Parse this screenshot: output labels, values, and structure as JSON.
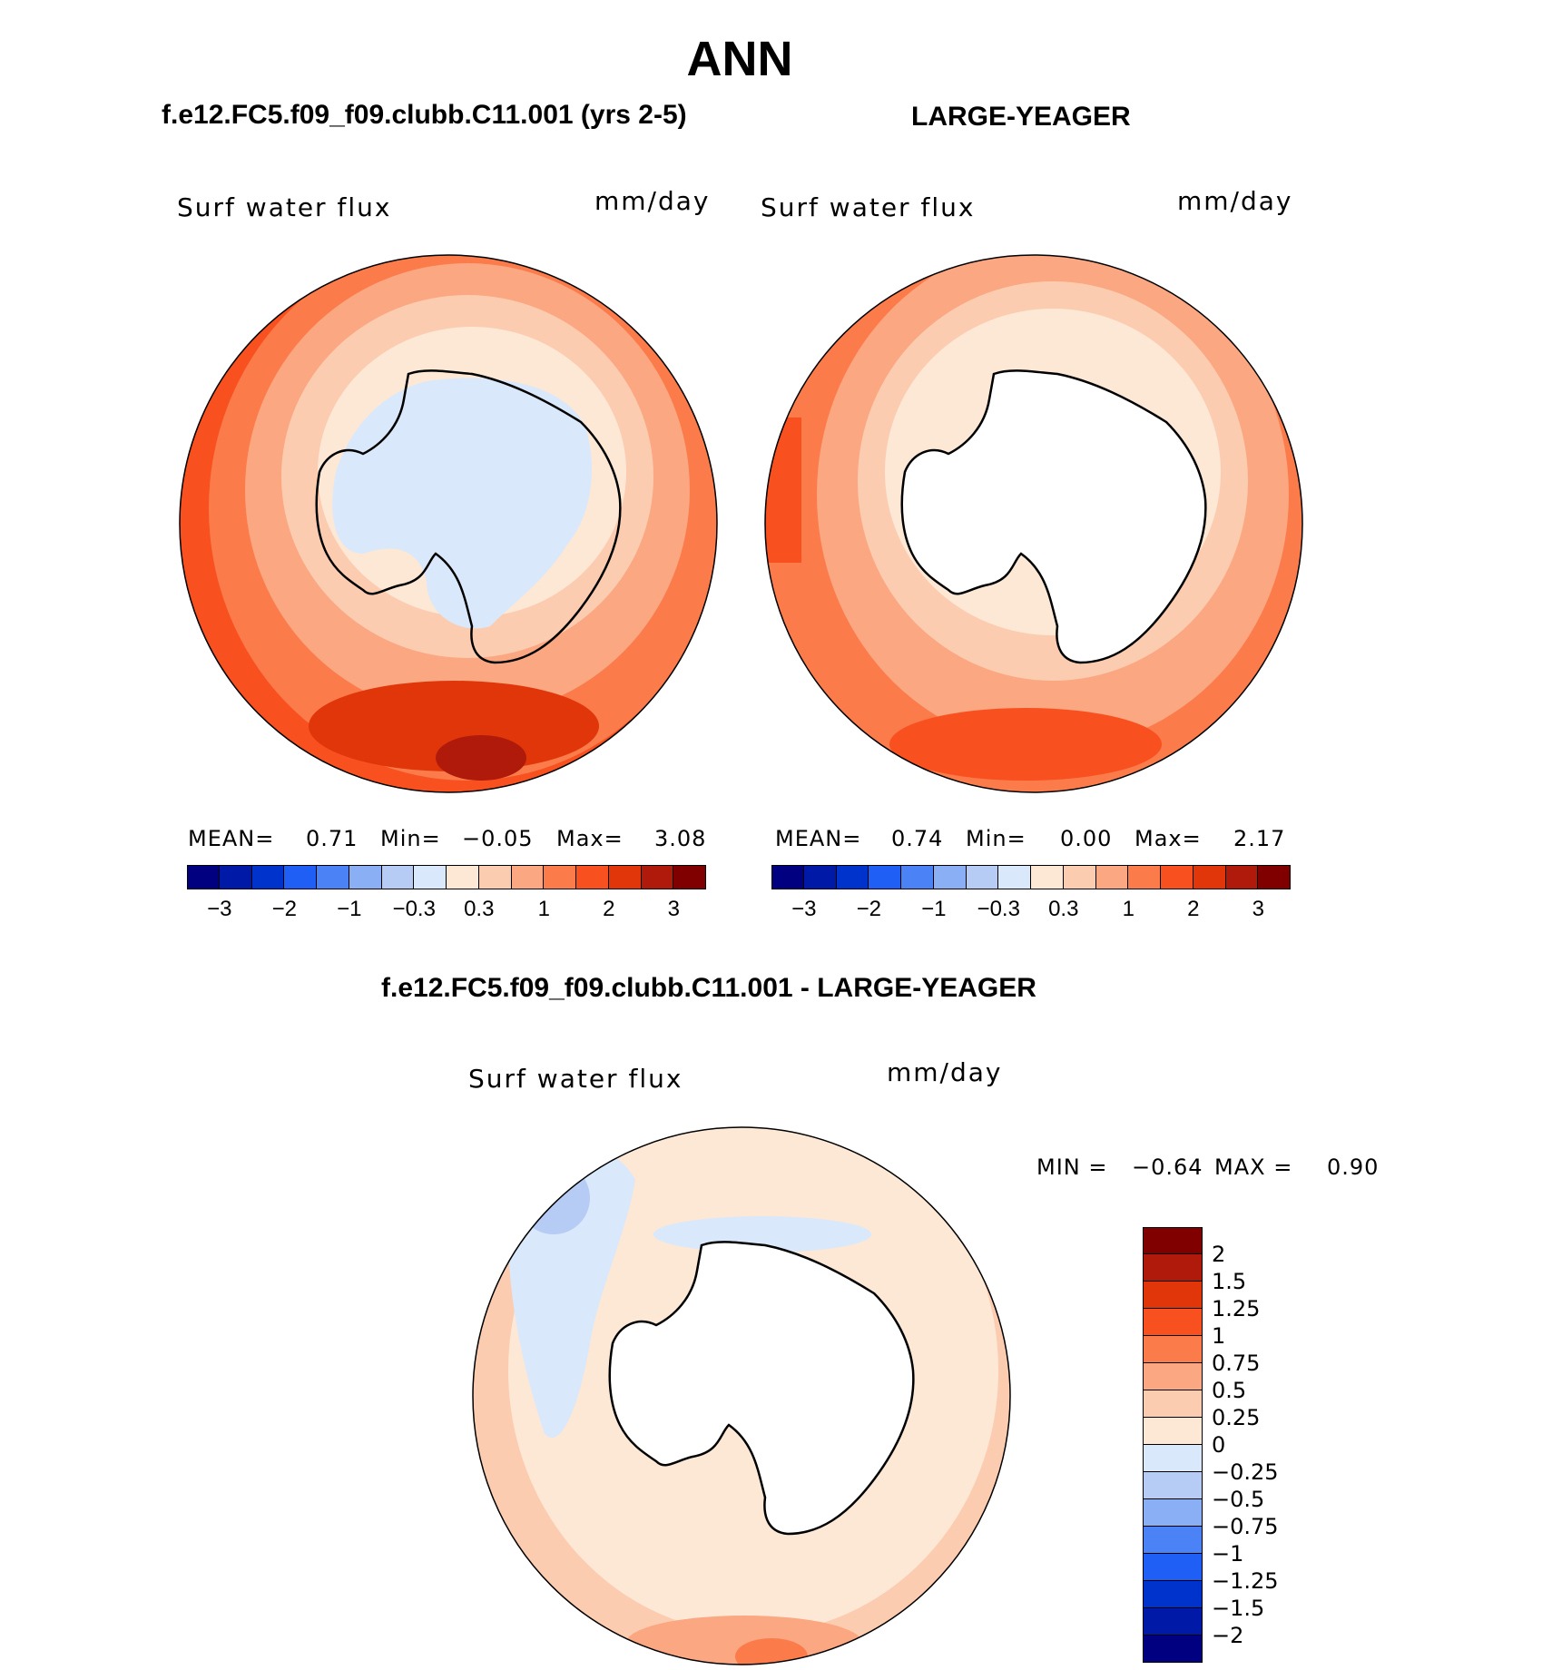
{
  "figure": {
    "season": "ANN",
    "title_left": "f.e12.FC5.f09_f09.clubb.C11.001 (yrs 2-5)",
    "title_right": "LARGE-YEAGER",
    "title_diff": "f.e12.FC5.f09_f09.clubb.C11.001 - LARGE-YEAGER"
  },
  "panels": [
    {
      "id": "model",
      "variable": "Surf water flux",
      "units": "mm/day",
      "mean_label": "MEAN=",
      "mean": "0.71",
      "min_label": "Min=",
      "min": "−0.05",
      "max_label": "Max=",
      "max": "3.08"
    },
    {
      "id": "obs",
      "variable": "Surf water flux",
      "units": "mm/day",
      "mean_label": "MEAN=",
      "mean": "0.74",
      "min_label": "Min=",
      "min": "0.00",
      "max_label": "Max=",
      "max": "2.17"
    },
    {
      "id": "diff",
      "variable": "Surf water flux",
      "units": "mm/day",
      "min_label": "MIN =",
      "min": "−0.64",
      "max_label": "MAX =",
      "max": "0.90"
    }
  ],
  "colorbar_main": {
    "colors": [
      "#000080",
      "#0019a6",
      "#0032cc",
      "#1f5ff5",
      "#4b82f5",
      "#8aaff5",
      "#b6ccf5",
      "#d9e8fa",
      "#fde8d6",
      "#fcccb0",
      "#fba781",
      "#fb7b4b",
      "#f9501f",
      "#e0360a",
      "#b01a0a",
      "#800000"
    ],
    "tick_labels": [
      "−3",
      "−2",
      "−1",
      "−0.3",
      "0.3",
      "1",
      "2",
      "3"
    ]
  },
  "colorbar_diff": {
    "colors": [
      "#800000",
      "#b01a0a",
      "#e0360a",
      "#f9501f",
      "#fb7b4b",
      "#fba781",
      "#fcccb0",
      "#fde8d6",
      "#d9e8fa",
      "#b6ccf5",
      "#8aaff5",
      "#4b82f5",
      "#1f5ff5",
      "#0032cc",
      "#0019a6",
      "#000080"
    ],
    "tick_labels": [
      "2",
      "1.5",
      "1.25",
      "1",
      "0.75",
      "0.5",
      "0.25",
      "0",
      "−0.25",
      "−0.5",
      "−0.75",
      "−1",
      "−1.25",
      "−1.5",
      "−2"
    ]
  },
  "chart_data": {
    "type": "heatmap",
    "projection": "south polar stereographic",
    "maps": [
      {
        "title": "f.e12.FC5.f09_f09.clubb.C11.001 (yrs 2-5)",
        "variable": "Surf water flux",
        "units": "mm/day",
        "mean": 0.71,
        "min": -0.05,
        "max": 3.08,
        "contour_levels": [
          -3,
          -2.5,
          -2,
          -1.5,
          -1,
          -0.5,
          -0.3,
          0,
          0.3,
          0.5,
          1,
          1.5,
          2,
          2.5,
          3
        ]
      },
      {
        "title": "LARGE-YEAGER",
        "variable": "Surf water flux",
        "units": "mm/day",
        "mean": 0.74,
        "min": 0.0,
        "max": 2.17,
        "contour_levels": [
          -3,
          -2.5,
          -2,
          -1.5,
          -1,
          -0.5,
          -0.3,
          0,
          0.3,
          0.5,
          1,
          1.5,
          2,
          2.5,
          3
        ]
      },
      {
        "title": "f.e12.FC5.f09_f09.clubb.C11.001 - LARGE-YEAGER",
        "variable": "Surf water flux",
        "units": "mm/day",
        "min": -0.64,
        "max": 0.9,
        "contour_levels": [
          -2,
          -1.5,
          -1.25,
          -1,
          -0.75,
          -0.5,
          -0.25,
          0,
          0.25,
          0.5,
          0.75,
          1,
          1.25,
          1.5,
          2
        ]
      }
    ]
  }
}
